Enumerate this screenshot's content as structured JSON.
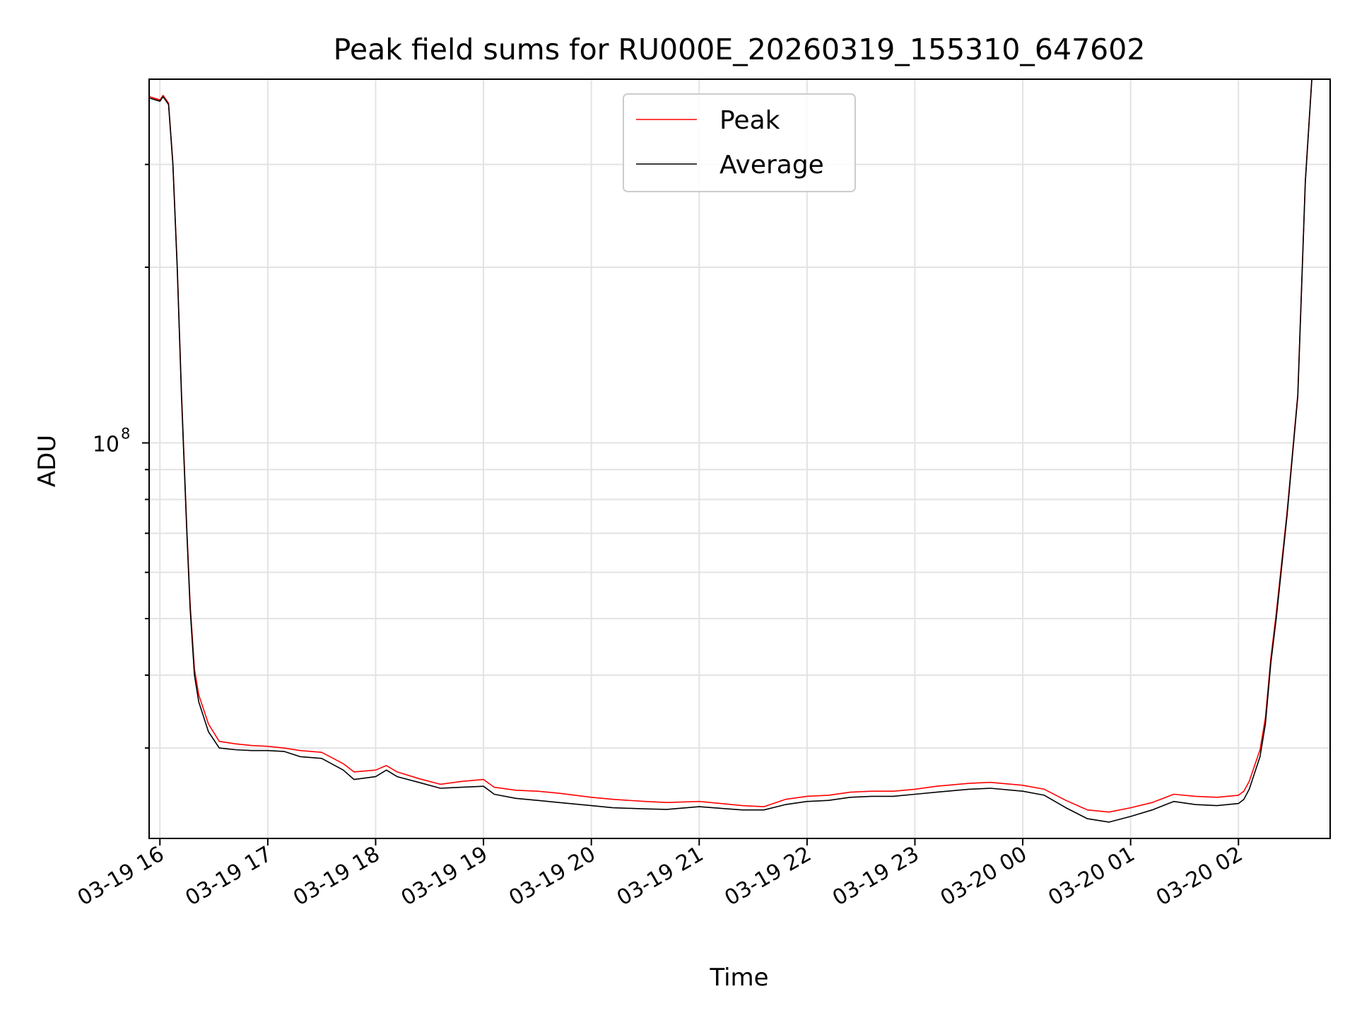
{
  "chart_data": {
    "type": "line",
    "title": "Peak field sums for RU000E_20260319_155310_647602",
    "xlabel": "Time",
    "ylabel": "ADU",
    "yscale": "log",
    "grid": true,
    "legend_position": "top-center",
    "x_tick_labels": [
      "03-19 16",
      "03-19 17",
      "03-19 18",
      "03-19 19",
      "03-19 20",
      "03-19 21",
      "03-19 22",
      "03-19 23",
      "03-20 00",
      "03-20 01",
      "03-20 02"
    ],
    "x_tick_hours": [
      0,
      1,
      2,
      3,
      4,
      5,
      6,
      7,
      8,
      9,
      10
    ],
    "xlim_hours": [
      -0.1,
      10.85
    ],
    "ylim": [
      21000000,
      420000000
    ],
    "y_tick_labels": [
      {
        "base": "10",
        "exp": "8",
        "value": 100000000
      }
    ],
    "y_minor_ticks": [
      30000000,
      40000000,
      50000000,
      60000000,
      70000000,
      80000000,
      90000000,
      200000000,
      300000000
    ],
    "series": [
      {
        "name": "Average",
        "color": "#000000",
        "x_hours": [
          -0.1,
          0,
          0.03,
          0.08,
          0.12,
          0.16,
          0.2,
          0.25,
          0.28,
          0.32,
          0.36,
          0.45,
          0.55,
          0.7,
          0.85,
          1.0,
          1.15,
          1.3,
          1.5,
          1.7,
          1.8,
          2.0,
          2.1,
          2.2,
          2.4,
          2.6,
          2.8,
          3.0,
          3.1,
          3.3,
          3.5,
          3.7,
          4.0,
          4.2,
          4.5,
          4.7,
          5.0,
          5.2,
          5.4,
          5.6,
          5.8,
          6.0,
          6.2,
          6.4,
          6.6,
          6.8,
          7.0,
          7.2,
          7.5,
          7.7,
          8.0,
          8.2,
          8.4,
          8.6,
          8.8,
          9.0,
          9.2,
          9.4,
          9.6,
          9.8,
          10.0,
          10.05,
          10.1,
          10.2,
          10.25,
          10.3,
          10.35,
          10.45,
          10.55,
          10.62,
          10.68
        ],
        "values": [
          390000000,
          385000000,
          392000000,
          380000000,
          300000000,
          200000000,
          120000000,
          70000000,
          52000000,
          40000000,
          36000000,
          32000000,
          30000000,
          29800000,
          29700000,
          29700000,
          29600000,
          29000000,
          28800000,
          27500000,
          26500000,
          26800000,
          27500000,
          26800000,
          26200000,
          25600000,
          25700000,
          25800000,
          25000000,
          24600000,
          24400000,
          24200000,
          23900000,
          23700000,
          23600000,
          23550000,
          23800000,
          23650000,
          23500000,
          23500000,
          24000000,
          24300000,
          24400000,
          24700000,
          24800000,
          24800000,
          25000000,
          25200000,
          25500000,
          25600000,
          25300000,
          24900000,
          23700000,
          22700000,
          22400000,
          22900000,
          23500000,
          24300000,
          24000000,
          23900000,
          24100000,
          24500000,
          25500000,
          29000000,
          33000000,
          42000000,
          50000000,
          75000000,
          120000000,
          280000000,
          420000000
        ]
      },
      {
        "name": "Peak",
        "color": "#ff0000",
        "x_hours": [
          -0.1,
          0,
          0.03,
          0.08,
          0.12,
          0.16,
          0.2,
          0.25,
          0.28,
          0.32,
          0.36,
          0.45,
          0.55,
          0.7,
          0.85,
          1.0,
          1.15,
          1.3,
          1.5,
          1.7,
          1.8,
          2.0,
          2.1,
          2.2,
          2.4,
          2.6,
          2.8,
          3.0,
          3.1,
          3.3,
          3.5,
          3.7,
          4.0,
          4.2,
          4.5,
          4.7,
          5.0,
          5.2,
          5.4,
          5.6,
          5.8,
          6.0,
          6.2,
          6.4,
          6.6,
          6.8,
          7.0,
          7.2,
          7.5,
          7.7,
          8.0,
          8.2,
          8.4,
          8.6,
          8.8,
          9.0,
          9.2,
          9.4,
          9.6,
          9.8,
          10.0,
          10.05,
          10.1,
          10.2,
          10.25,
          10.3,
          10.35,
          10.45,
          10.55,
          10.62,
          10.68
        ],
        "values": [
          392000000,
          387000000,
          394000000,
          382000000,
          302000000,
          202000000,
          122000000,
          71000000,
          53000000,
          41000000,
          37000000,
          33000000,
          30800000,
          30500000,
          30300000,
          30200000,
          30000000,
          29700000,
          29500000,
          28200000,
          27300000,
          27500000,
          28000000,
          27300000,
          26600000,
          26000000,
          26300000,
          26500000,
          25700000,
          25400000,
          25300000,
          25100000,
          24700000,
          24500000,
          24300000,
          24200000,
          24300000,
          24100000,
          23900000,
          23800000,
          24500000,
          24800000,
          24900000,
          25200000,
          25300000,
          25300000,
          25500000,
          25800000,
          26100000,
          26200000,
          25900000,
          25500000,
          24400000,
          23500000,
          23300000,
          23700000,
          24200000,
          25000000,
          24800000,
          24700000,
          24900000,
          25300000,
          26300000,
          29800000,
          33800000,
          42800000,
          51000000,
          76000000,
          121000000,
          282000000,
          421000000
        ]
      }
    ]
  }
}
